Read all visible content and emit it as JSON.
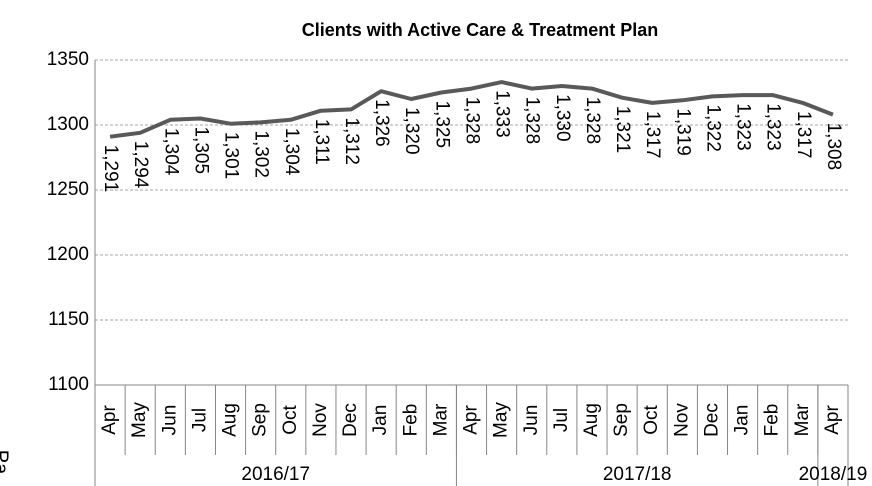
{
  "chart_data": {
    "type": "line",
    "title": "Clients with Active Care & Treatment Plan",
    "groups": [
      {
        "label": "2016/17",
        "categories": [
          "Apr",
          "May",
          "Jun",
          "Jul",
          "Aug",
          "Sep",
          "Oct",
          "Nov",
          "Dec",
          "Jan",
          "Feb",
          "Mar"
        ]
      },
      {
        "label": "2017/18",
        "categories": [
          "Apr",
          "May",
          "Jun",
          "Jul",
          "Aug",
          "Sep",
          "Oct",
          "Nov",
          "Dec",
          "Jan",
          "Feb",
          "Mar"
        ]
      },
      {
        "label": "2018/19",
        "categories": [
          "Apr"
        ]
      }
    ],
    "values": [
      1291,
      1294,
      1304,
      1305,
      1301,
      1302,
      1304,
      1311,
      1312,
      1326,
      1320,
      1325,
      1328,
      1333,
      1328,
      1330,
      1328,
      1321,
      1317,
      1319,
      1322,
      1323,
      1323,
      1317,
      1308
    ],
    "value_labels": [
      "1,291",
      "1,294",
      "1,304",
      "1,305",
      "1,301",
      "1,302",
      "1,304",
      "1,311",
      "1,312",
      "1,326",
      "1,320",
      "1,325",
      "1,328",
      "1,333",
      "1,328",
      "1,330",
      "1,328",
      "1,321",
      "1,317",
      "1,319",
      "1,322",
      "1,323",
      "1,323",
      "1,317",
      "1,308"
    ],
    "color": "#595959",
    "ylim": [
      1100,
      1350
    ],
    "yticks": [
      1100,
      1150,
      1200,
      1250,
      1300,
      1350
    ],
    "grid": true,
    "side_text": "Pa"
  }
}
